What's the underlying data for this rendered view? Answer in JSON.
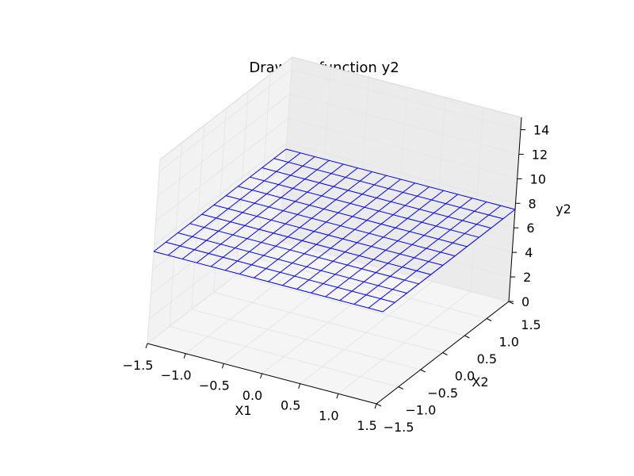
{
  "chart_data": {
    "type": "surface-wireframe-3d",
    "title": "Draw the function y2",
    "xlabel": "X1",
    "ylabel": "X2",
    "zlabel": "y2",
    "xlim": [
      -1.5,
      1.5
    ],
    "ylim": [
      -1.5,
      1.5
    ],
    "zlim": [
      0,
      15
    ],
    "xticks": [
      "−1.5",
      "−1.0",
      "−0.5",
      "0.0",
      "0.5",
      "1.0",
      "1.5"
    ],
    "yticks": [
      "−1.5",
      "−1.0",
      "−0.5",
      "0.0",
      "0.5",
      "1.0",
      "1.5"
    ],
    "zticks": [
      "0",
      "2",
      "4",
      "6",
      "8",
      "10",
      "12",
      "14"
    ],
    "surface": {
      "x_range": [
        -1.5,
        1.5
      ],
      "y_range": [
        -1.5,
        1.5
      ],
      "z_value": 7.5,
      "grid_x": 16,
      "grid_y": 11,
      "color": "#0000ff"
    },
    "grid": true,
    "pane_color": "#f2f2f2",
    "pane_grid_color": "#e6e6e6"
  }
}
